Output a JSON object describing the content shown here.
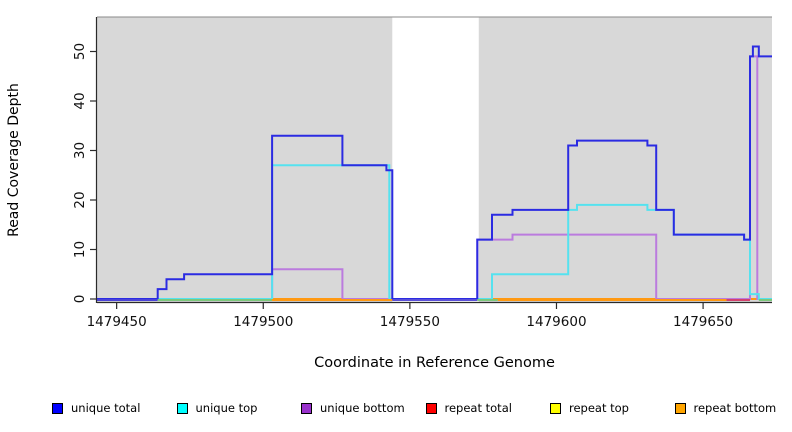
{
  "chart_data": {
    "type": "line",
    "title": "",
    "xlabel": "Coordinate in Reference Genome",
    "ylabel": "Read Coverage Depth",
    "x_ticks": [
      "1479450",
      "1479500",
      "1479550",
      "1479600",
      "1479650"
    ],
    "x_tick_values": [
      1479450,
      1479500,
      1479550,
      1479600,
      1479650
    ],
    "y_ticks": [
      "0",
      "10",
      "20",
      "30",
      "40",
      "50"
    ],
    "y_tick_values": [
      0,
      10,
      20,
      30,
      40,
      50
    ],
    "xlim": [
      1479443.3,
      1479673.5
    ],
    "ylim": [
      0,
      55
    ],
    "grid": false,
    "legend_position": "bottom",
    "plot_background_color": "#D8D8D8",
    "uncovered_gap": {
      "from": 1479544,
      "to": 1479573.5
    },
    "series": [
      {
        "name": "repeat total",
        "color": "#E03A50",
        "legend_color": "#FF0000",
        "steps": [
          [
            1479443.3,
            0
          ],
          [
            1479673.5,
            0
          ]
        ]
      },
      {
        "name": "repeat top",
        "color": "#F5F53C",
        "legend_color": "#FFFF00",
        "steps": [
          [
            1479443.3,
            0
          ],
          [
            1479673.5,
            0
          ]
        ]
      },
      {
        "name": "repeat bottom",
        "color": "#FF9912",
        "legend_color": "#FFA500",
        "steps": [
          [
            1479443.3,
            0
          ],
          [
            1479673.5,
            0
          ]
        ]
      },
      {
        "name": "unique bottom",
        "color": "#BB7BDE",
        "legend_color": "#9932CC",
        "steps": [
          [
            1479443.3,
            0
          ],
          [
            1479503,
            6
          ],
          [
            1479527,
            0
          ],
          [
            1479573,
            12
          ],
          [
            1479585,
            13
          ],
          [
            1479634,
            0
          ],
          [
            1479666,
            49
          ],
          [
            1479668.5,
            0
          ],
          [
            1479673.5,
            0
          ]
        ]
      },
      {
        "name": "unique top",
        "color": "#55E2EF",
        "legend_color": "#00FFFF",
        "steps": [
          [
            1479443.3,
            0
          ],
          [
            1479503,
            27
          ],
          [
            1479543,
            0
          ],
          [
            1479578,
            5
          ],
          [
            1479604,
            18
          ],
          [
            1479607,
            19
          ],
          [
            1479631,
            18
          ],
          [
            1479640,
            13
          ],
          [
            1479664,
            12
          ],
          [
            1479666,
            1
          ],
          [
            1479669,
            0
          ],
          [
            1479673.5,
            0
          ]
        ]
      },
      {
        "name": "unique total",
        "color": "#2B2BE2",
        "legend_color": "#0000FF",
        "steps": [
          [
            1479443.3,
            0
          ],
          [
            1479464,
            2
          ],
          [
            1479467,
            4
          ],
          [
            1479473,
            5
          ],
          [
            1479503,
            33
          ],
          [
            1479527,
            27
          ],
          [
            1479542,
            26
          ],
          [
            1479544,
            0
          ],
          [
            1479573,
            12
          ],
          [
            1479578,
            17
          ],
          [
            1479585,
            18
          ],
          [
            1479604,
            31
          ],
          [
            1479607,
            32
          ],
          [
            1479631,
            31
          ],
          [
            1479634,
            18
          ],
          [
            1479640,
            13
          ],
          [
            1479664,
            12
          ],
          [
            1479666,
            49
          ],
          [
            1479667,
            51
          ],
          [
            1479669,
            49
          ],
          [
            1479673.5,
            49
          ]
        ]
      }
    ],
    "baseline_segments": [
      {
        "from": 1479443.3,
        "to": 1479464,
        "color": "#4A42D8"
      },
      {
        "from": 1479464,
        "to": 1479503,
        "color": "#7CC87C"
      },
      {
        "from": 1479503,
        "to": 1479544,
        "color": "#FF9912"
      },
      {
        "from": 1479544,
        "to": 1479573,
        "color": "#5A4FD8"
      },
      {
        "from": 1479573,
        "to": 1479580,
        "color": "#7CC87C"
      },
      {
        "from": 1479580,
        "to": 1479658,
        "color": "#FF9912"
      },
      {
        "from": 1479658,
        "to": 1479666,
        "color": "#D2426E"
      },
      {
        "from": 1479669,
        "to": 1479673.5,
        "color": "#7CC87C"
      }
    ],
    "legend_items": [
      {
        "label": "unique total",
        "color": "#0000FF"
      },
      {
        "label": "unique top",
        "color": "#00FFFF"
      },
      {
        "label": "unique bottom",
        "color": "#9932CC"
      },
      {
        "label": "repeat total",
        "color": "#FF0000"
      },
      {
        "label": "repeat top",
        "color": "#FFFF00"
      },
      {
        "label": "repeat bottom",
        "color": "#FFA500"
      }
    ]
  }
}
